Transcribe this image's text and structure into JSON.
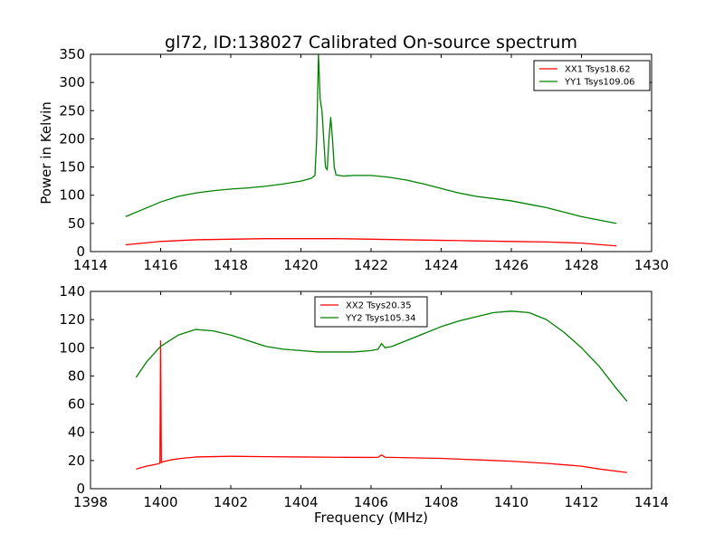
{
  "chart_data": [
    {
      "type": "line",
      "title": "gl72, ID:138027 Calibrated On-source spectrum",
      "xlabel": "",
      "ylabel": "Power in Kelvin",
      "xlim": [
        1414,
        1430
      ],
      "ylim": [
        0,
        350
      ],
      "xticks": [
        1414,
        1416,
        1418,
        1420,
        1422,
        1424,
        1426,
        1428,
        1430
      ],
      "yticks": [
        0,
        50,
        100,
        150,
        200,
        250,
        300,
        350
      ],
      "grid": false,
      "legend_position": "top-right",
      "series": [
        {
          "name": "XX1 Tsys18.62",
          "color": "#ff0000",
          "x": [
            1415,
            1416,
            1417,
            1418,
            1419,
            1420,
            1421,
            1422,
            1423,
            1424,
            1425,
            1426,
            1427,
            1428,
            1429
          ],
          "y": [
            12,
            18,
            21,
            22,
            23,
            23,
            23,
            22,
            21,
            20,
            19,
            18,
            17,
            15,
            10
          ]
        },
        {
          "name": "YY1 Tsys109.06",
          "color": "#008000",
          "x": [
            1415,
            1415.5,
            1416,
            1416.5,
            1417,
            1417.5,
            1418,
            1418.5,
            1419,
            1419.5,
            1420,
            1420.3,
            1420.4,
            1420.45,
            1420.5,
            1420.55,
            1420.6,
            1420.65,
            1420.7,
            1420.75,
            1420.8,
            1420.85,
            1420.9,
            1420.95,
            1421,
            1421.2,
            1421.5,
            1422,
            1422.5,
            1423,
            1423.5,
            1424,
            1424.5,
            1425,
            1425.5,
            1426,
            1426.5,
            1427,
            1427.5,
            1428,
            1428.5,
            1429
          ],
          "y": [
            62,
            75,
            88,
            98,
            104,
            108,
            111,
            113,
            116,
            120,
            125,
            130,
            135,
            200,
            350,
            270,
            250,
            200,
            150,
            145,
            200,
            238,
            200,
            150,
            136,
            134,
            135,
            135,
            132,
            127,
            120,
            112,
            104,
            98,
            94,
            90,
            84,
            78,
            70,
            62,
            56,
            50
          ]
        }
      ]
    },
    {
      "type": "line",
      "title": "",
      "xlabel": "Frequency (MHz)",
      "ylabel": "",
      "xlim": [
        1398,
        1414
      ],
      "ylim": [
        0,
        140
      ],
      "xticks": [
        1398,
        1400,
        1402,
        1404,
        1406,
        1408,
        1410,
        1412,
        1414
      ],
      "yticks": [
        0,
        20,
        40,
        60,
        80,
        100,
        120,
        140
      ],
      "grid": false,
      "legend_position": "top-center",
      "series": [
        {
          "name": "XX2 Tsys20.35",
          "color": "#ff0000",
          "x": [
            1399.3,
            1399.6,
            1399.9,
            1399.98,
            1400.0,
            1400.02,
            1400.05,
            1400.3,
            1400.6,
            1401,
            1402,
            1403,
            1404,
            1405,
            1406,
            1406.2,
            1406.3,
            1406.4,
            1407,
            1408,
            1409,
            1410,
            1411,
            1412,
            1412.5,
            1413.3
          ],
          "y": [
            14,
            16,
            17.5,
            18,
            105,
            18.5,
            19,
            20.5,
            21.5,
            22.5,
            23,
            22.7,
            22.5,
            22.3,
            22.2,
            22.3,
            24,
            22.3,
            22,
            21.5,
            20.5,
            19.5,
            18,
            16,
            14,
            11.5
          ]
        },
        {
          "name": "YY2 Tsys105.34",
          "color": "#008000",
          "x": [
            1399.3,
            1399.6,
            1400,
            1400.5,
            1401,
            1401.5,
            1402,
            1402.5,
            1403,
            1403.5,
            1404,
            1404.5,
            1405,
            1405.5,
            1406,
            1406.2,
            1406.3,
            1406.4,
            1406.6,
            1407,
            1407.5,
            1408,
            1408.5,
            1409,
            1409.5,
            1410,
            1410.5,
            1411,
            1411.5,
            1412,
            1412.5,
            1413,
            1413.3
          ],
          "y": [
            79,
            90,
            101,
            109,
            113,
            112,
            109,
            105,
            101,
            99,
            98,
            97,
            97,
            97,
            98,
            99,
            103,
            100,
            101,
            105,
            110,
            115,
            119,
            122,
            125,
            126,
            125,
            120,
            111,
            100,
            87,
            71,
            62
          ]
        }
      ]
    }
  ]
}
